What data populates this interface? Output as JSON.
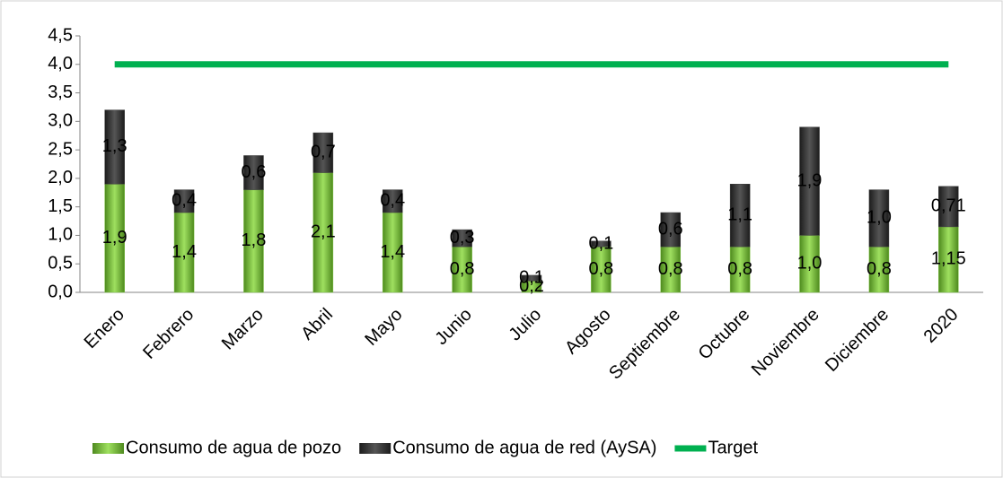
{
  "chart_data": {
    "type": "bar",
    "stacked": true,
    "categories": [
      "Enero",
      "Febrero",
      "Marzo",
      "Abril",
      "Mayo",
      "Junio",
      "Julio",
      "Agosto",
      "Septiembre",
      "Octubre",
      "Noviembre",
      "Diciembre",
      "2020"
    ],
    "series": [
      {
        "name": "Consumo de agua de pozo",
        "color": "#7dc242",
        "values": [
          1.9,
          1.4,
          1.8,
          2.1,
          1.4,
          0.8,
          0.2,
          0.8,
          0.8,
          0.8,
          1.0,
          0.8,
          1.15
        ],
        "value_labels": [
          "1,9",
          "1,4",
          "1,8",
          "2,1",
          "1,4",
          "0,8",
          "0,2",
          "0,8",
          "0,8",
          "0,8",
          "1,0",
          "0,8",
          "1,15"
        ]
      },
      {
        "name": "Consumo de agua de red (AySA)",
        "color": "#404040",
        "values": [
          1.3,
          0.4,
          0.6,
          0.7,
          0.4,
          0.3,
          0.1,
          0.1,
          0.6,
          1.1,
          1.9,
          1.0,
          0.71
        ],
        "value_labels": [
          "1,3",
          "0,4",
          "0,6",
          "0,7",
          "0,4",
          "0,3",
          "0,1",
          "0,1",
          "0,6",
          "1,1",
          "1,9",
          "1,0",
          "0,71"
        ]
      },
      {
        "name": "Target",
        "color": "#00b050",
        "kind": "line",
        "values": [
          4,
          4,
          4,
          4,
          4,
          4,
          4,
          4,
          4,
          4,
          4,
          4,
          4
        ]
      }
    ],
    "ylim": [
      0,
      4.5
    ],
    "yticks": [
      {
        "value": 0,
        "label": "0,0"
      },
      {
        "value": 0.5,
        "label": "0,5"
      },
      {
        "value": 1,
        "label": "1,0"
      },
      {
        "value": 1.5,
        "label": "1,5"
      },
      {
        "value": 2,
        "label": "2,0"
      },
      {
        "value": 2.5,
        "label": "2,5"
      },
      {
        "value": 3,
        "label": "3,0"
      },
      {
        "value": 3.5,
        "label": "3,5"
      },
      {
        "value": 4,
        "label": "4,0"
      },
      {
        "value": 4.5,
        "label": "4,5"
      }
    ],
    "grid": false,
    "legend": "bottom"
  }
}
